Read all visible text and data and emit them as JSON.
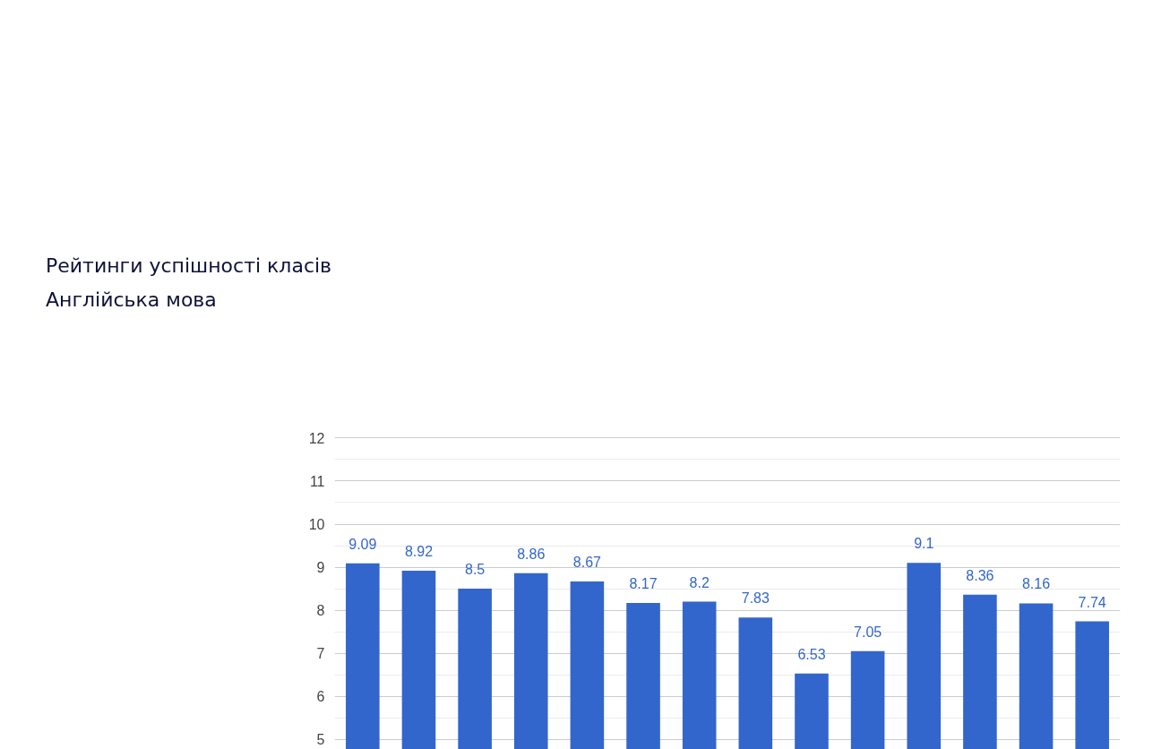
{
  "chart_data": {
    "type": "bar",
    "title": "Рейтинги успішності класів",
    "subtitle": "Англійська мова",
    "categories": [
      null,
      null,
      null,
      null,
      null,
      null,
      null,
      null,
      null,
      null,
      null,
      null,
      null,
      null
    ],
    "values": [
      9.09,
      8.92,
      8.5,
      8.86,
      8.67,
      8.17,
      8.2,
      7.83,
      6.53,
      7.05,
      9.1,
      8.36,
      8.16,
      7.74
    ],
    "color": "#3366cc",
    "data_labels": true,
    "grid": "y",
    "ylim": [
      4.6,
      12.05
    ],
    "yticks": [
      5,
      {
        "value": 5.5,
        "label": null
      },
      6,
      {
        "value": 6.5,
        "label": null
      },
      7,
      {
        "value": 7.5,
        "label": null
      },
      8,
      {
        "value": 8.5,
        "label": null
      },
      9,
      {
        "value": 9.5,
        "label": null
      },
      10,
      {
        "value": 10.5,
        "label": null
      },
      11,
      {
        "value": 11.5,
        "label": null
      },
      12
    ],
    "tick_labels": "y"
  }
}
